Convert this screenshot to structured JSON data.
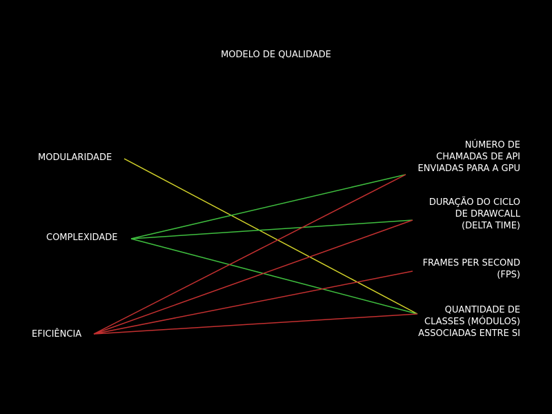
{
  "title": "MODELO DE QUALIDADE",
  "left_nodes": [
    {
      "id": "modularidade",
      "label": "MODULARIDADE"
    },
    {
      "id": "complexidade",
      "label": "COMPLEXIDADE"
    },
    {
      "id": "eficiencia",
      "label": "EFICIÊNCIA"
    }
  ],
  "right_nodes": [
    {
      "id": "api",
      "lines": [
        "NÚMERO DE",
        "CHAMADAS DE API",
        "ENVIADAS PARA A GPU"
      ]
    },
    {
      "id": "delta",
      "lines": [
        "DURAÇÃO DO CICLO",
        "DE DRAWCALL",
        "(DELTA TIME)"
      ]
    },
    {
      "id": "fps",
      "lines": [
        "FRAMES PER SECOND",
        "(FPS)"
      ]
    },
    {
      "id": "classes",
      "lines": [
        "QUANTIDADE DE",
        "CLASSES (MÓDULOS)",
        "ASSOCIADAS ENTRE SI"
      ]
    }
  ],
  "links": [
    {
      "from": "modularidade",
      "to": "classes",
      "color": "#d4d42a"
    },
    {
      "from": "complexidade",
      "to": "api",
      "color": "#3fbf3f"
    },
    {
      "from": "complexidade",
      "to": "delta",
      "color": "#3fbf3f"
    },
    {
      "from": "complexidade",
      "to": "classes",
      "color": "#3fbf3f"
    },
    {
      "from": "eficiencia",
      "to": "api",
      "color": "#c43030"
    },
    {
      "from": "eficiencia",
      "to": "delta",
      "color": "#c43030"
    },
    {
      "from": "eficiencia",
      "to": "fps",
      "color": "#c43030"
    },
    {
      "from": "eficiencia",
      "to": "classes",
      "color": "#c43030"
    }
  ]
}
